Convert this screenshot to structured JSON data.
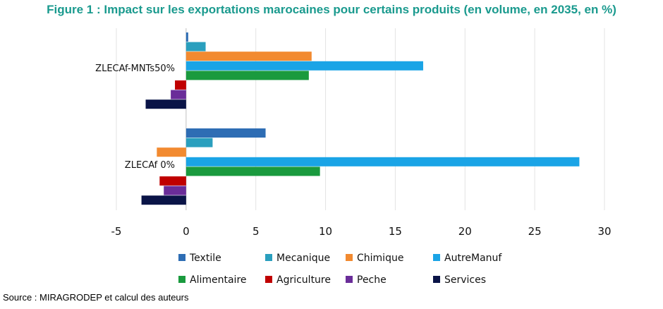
{
  "title": "Figure 1 : Impact sur les exportations marocaines pour certains produits (en volume, en 2035, en %)",
  "source": "Source : MIRAGRODEP et calcul des auteurs",
  "chart_data": {
    "type": "bar",
    "orientation": "horizontal",
    "categories": [
      "ZLECAf-MNTs50%",
      "ZLECAf 0%"
    ],
    "xlim": [
      -5,
      30
    ],
    "xticks": [
      -5,
      0,
      5,
      10,
      15,
      20,
      25,
      30
    ],
    "grid": "vertical",
    "legend_position": "bottom",
    "series": [
      {
        "name": "Textile",
        "color": "#2e6db4",
        "values": [
          0.15,
          5.7
        ]
      },
      {
        "name": "Mecanique",
        "color": "#2a9fbe",
        "values": [
          1.4,
          1.9
        ]
      },
      {
        "name": "Chimique",
        "color": "#f28a30",
        "values": [
          9.0,
          -2.1
        ]
      },
      {
        "name": "AutreManuf",
        "color": "#1aa4e6",
        "values": [
          17.0,
          28.2
        ]
      },
      {
        "name": "Alimentaire",
        "color": "#1a9a3e",
        "values": [
          8.8,
          9.6
        ]
      },
      {
        "name": "Agriculture",
        "color": "#c00000",
        "values": [
          -0.8,
          -1.9
        ]
      },
      {
        "name": "Peche",
        "color": "#6a2d99",
        "values": [
          -1.1,
          -1.6
        ]
      },
      {
        "name": "Services",
        "color": "#0a1447",
        "values": [
          -2.9,
          -3.2
        ]
      }
    ]
  }
}
